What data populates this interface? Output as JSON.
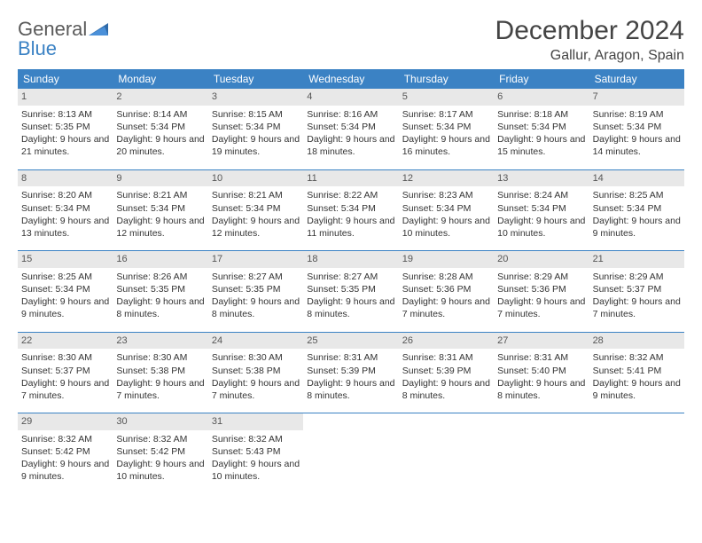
{
  "logo": {
    "line1": "General",
    "line2": "Blue"
  },
  "title": "December 2024",
  "location": "Gallur, Aragon, Spain",
  "colors": {
    "accent": "#3b82c4",
    "daynum_bg": "#e8e8e8",
    "text": "#333333"
  },
  "day_headers": [
    "Sunday",
    "Monday",
    "Tuesday",
    "Wednesday",
    "Thursday",
    "Friday",
    "Saturday"
  ],
  "weeks": [
    [
      {
        "n": "1",
        "sr": "8:13 AM",
        "ss": "5:35 PM",
        "dl": "9 hours and 21 minutes."
      },
      {
        "n": "2",
        "sr": "8:14 AM",
        "ss": "5:34 PM",
        "dl": "9 hours and 20 minutes."
      },
      {
        "n": "3",
        "sr": "8:15 AM",
        "ss": "5:34 PM",
        "dl": "9 hours and 19 minutes."
      },
      {
        "n": "4",
        "sr": "8:16 AM",
        "ss": "5:34 PM",
        "dl": "9 hours and 18 minutes."
      },
      {
        "n": "5",
        "sr": "8:17 AM",
        "ss": "5:34 PM",
        "dl": "9 hours and 16 minutes."
      },
      {
        "n": "6",
        "sr": "8:18 AM",
        "ss": "5:34 PM",
        "dl": "9 hours and 15 minutes."
      },
      {
        "n": "7",
        "sr": "8:19 AM",
        "ss": "5:34 PM",
        "dl": "9 hours and 14 minutes."
      }
    ],
    [
      {
        "n": "8",
        "sr": "8:20 AM",
        "ss": "5:34 PM",
        "dl": "9 hours and 13 minutes."
      },
      {
        "n": "9",
        "sr": "8:21 AM",
        "ss": "5:34 PM",
        "dl": "9 hours and 12 minutes."
      },
      {
        "n": "10",
        "sr": "8:21 AM",
        "ss": "5:34 PM",
        "dl": "9 hours and 12 minutes."
      },
      {
        "n": "11",
        "sr": "8:22 AM",
        "ss": "5:34 PM",
        "dl": "9 hours and 11 minutes."
      },
      {
        "n": "12",
        "sr": "8:23 AM",
        "ss": "5:34 PM",
        "dl": "9 hours and 10 minutes."
      },
      {
        "n": "13",
        "sr": "8:24 AM",
        "ss": "5:34 PM",
        "dl": "9 hours and 10 minutes."
      },
      {
        "n": "14",
        "sr": "8:25 AM",
        "ss": "5:34 PM",
        "dl": "9 hours and 9 minutes."
      }
    ],
    [
      {
        "n": "15",
        "sr": "8:25 AM",
        "ss": "5:34 PM",
        "dl": "9 hours and 9 minutes."
      },
      {
        "n": "16",
        "sr": "8:26 AM",
        "ss": "5:35 PM",
        "dl": "9 hours and 8 minutes."
      },
      {
        "n": "17",
        "sr": "8:27 AM",
        "ss": "5:35 PM",
        "dl": "9 hours and 8 minutes."
      },
      {
        "n": "18",
        "sr": "8:27 AM",
        "ss": "5:35 PM",
        "dl": "9 hours and 8 minutes."
      },
      {
        "n": "19",
        "sr": "8:28 AM",
        "ss": "5:36 PM",
        "dl": "9 hours and 7 minutes."
      },
      {
        "n": "20",
        "sr": "8:29 AM",
        "ss": "5:36 PM",
        "dl": "9 hours and 7 minutes."
      },
      {
        "n": "21",
        "sr": "8:29 AM",
        "ss": "5:37 PM",
        "dl": "9 hours and 7 minutes."
      }
    ],
    [
      {
        "n": "22",
        "sr": "8:30 AM",
        "ss": "5:37 PM",
        "dl": "9 hours and 7 minutes."
      },
      {
        "n": "23",
        "sr": "8:30 AM",
        "ss": "5:38 PM",
        "dl": "9 hours and 7 minutes."
      },
      {
        "n": "24",
        "sr": "8:30 AM",
        "ss": "5:38 PM",
        "dl": "9 hours and 7 minutes."
      },
      {
        "n": "25",
        "sr": "8:31 AM",
        "ss": "5:39 PM",
        "dl": "9 hours and 8 minutes."
      },
      {
        "n": "26",
        "sr": "8:31 AM",
        "ss": "5:39 PM",
        "dl": "9 hours and 8 minutes."
      },
      {
        "n": "27",
        "sr": "8:31 AM",
        "ss": "5:40 PM",
        "dl": "9 hours and 8 minutes."
      },
      {
        "n": "28",
        "sr": "8:32 AM",
        "ss": "5:41 PM",
        "dl": "9 hours and 9 minutes."
      }
    ],
    [
      {
        "n": "29",
        "sr": "8:32 AM",
        "ss": "5:42 PM",
        "dl": "9 hours and 9 minutes."
      },
      {
        "n": "30",
        "sr": "8:32 AM",
        "ss": "5:42 PM",
        "dl": "9 hours and 10 minutes."
      },
      {
        "n": "31",
        "sr": "8:32 AM",
        "ss": "5:43 PM",
        "dl": "9 hours and 10 minutes."
      },
      null,
      null,
      null,
      null
    ]
  ],
  "labels": {
    "sunrise": "Sunrise:",
    "sunset": "Sunset:",
    "daylight": "Daylight:"
  }
}
